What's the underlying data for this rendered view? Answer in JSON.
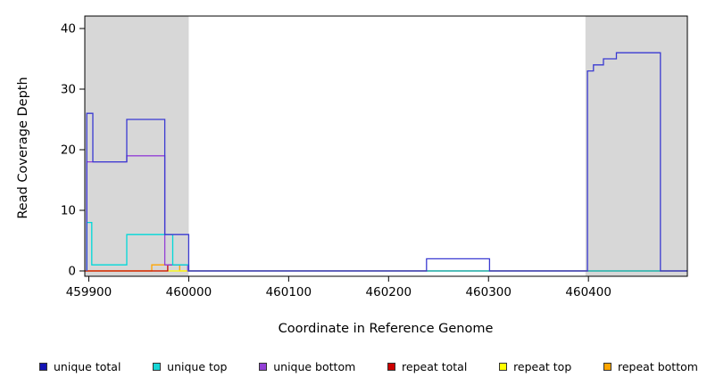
{
  "chart_data": {
    "type": "line",
    "title": "",
    "xlabel": "Coordinate in Reference Genome",
    "ylabel": "Read Coverage Depth",
    "xlim": [
      459896,
      460499
    ],
    "ylim": [
      0,
      40
    ],
    "x_ticks": [
      459900,
      460000,
      460100,
      460200,
      460300,
      460400
    ],
    "y_ticks": [
      0,
      10,
      20,
      30,
      40
    ],
    "grid": false,
    "legend_position": "bottom",
    "shade_color": "#d7d7d7",
    "shaded_regions": [
      {
        "x0": 459896,
        "x1": 460000
      },
      {
        "x0": 460397,
        "x1": 460499
      }
    ],
    "series": [
      {
        "name": "unique total",
        "color": "#3a3ad1",
        "points": [
          [
            459898,
            0
          ],
          [
            459898,
            26
          ],
          [
            459904,
            26
          ],
          [
            459904,
            18
          ],
          [
            459938,
            18
          ],
          [
            459938,
            25
          ],
          [
            459976,
            25
          ],
          [
            459976,
            6
          ],
          [
            460000,
            6
          ],
          [
            460000,
            0
          ],
          [
            460238,
            0
          ],
          [
            460238,
            2
          ],
          [
            460301,
            2
          ],
          [
            460301,
            0
          ],
          [
            460399,
            0
          ],
          [
            460399,
            33
          ],
          [
            460405,
            33
          ],
          [
            460405,
            34
          ],
          [
            460415,
            34
          ],
          [
            460415,
            35
          ],
          [
            460428,
            35
          ],
          [
            460428,
            36
          ],
          [
            460472,
            36
          ],
          [
            460472,
            0
          ],
          [
            460499,
            0
          ]
        ]
      },
      {
        "name": "unique top",
        "color": "#00d8d8",
        "points": [
          [
            459898,
            0
          ],
          [
            459898,
            8
          ],
          [
            459903,
            8
          ],
          [
            459903,
            1
          ],
          [
            459938,
            1
          ],
          [
            459938,
            6
          ],
          [
            459984,
            6
          ],
          [
            459984,
            1
          ],
          [
            460000,
            1
          ],
          [
            460000,
            0
          ],
          [
            460499,
            0
          ]
        ]
      },
      {
        "name": "unique bottom",
        "color": "#9340d6",
        "points": [
          [
            459898,
            0
          ],
          [
            459898,
            18
          ],
          [
            459938,
            18
          ],
          [
            459938,
            19
          ],
          [
            459976,
            19
          ],
          [
            459976,
            1
          ],
          [
            459999,
            1
          ],
          [
            459999,
            0
          ],
          [
            460499,
            0
          ]
        ]
      },
      {
        "name": "repeat total",
        "color": "#cc0000",
        "points": [
          [
            459896,
            0
          ],
          [
            459979,
            0
          ],
          [
            459979,
            1
          ],
          [
            460000,
            1
          ],
          [
            460000,
            0
          ],
          [
            460499,
            0
          ]
        ]
      },
      {
        "name": "repeat top",
        "color": "#ffff00",
        "points": [
          [
            459896,
            0
          ],
          [
            460499,
            0
          ]
        ]
      },
      {
        "name": "repeat bottom",
        "color": "#ffa500",
        "points": [
          [
            459896,
            0
          ],
          [
            459963,
            0
          ],
          [
            459963,
            1
          ],
          [
            459991,
            1
          ],
          [
            459991,
            0
          ],
          [
            460499,
            0
          ]
        ]
      }
    ],
    "legend": [
      {
        "label": "unique total",
        "color": "#1515b5"
      },
      {
        "label": "unique top",
        "color": "#17d6d6"
      },
      {
        "label": "unique bottom",
        "color": "#9340d6"
      },
      {
        "label": "repeat total",
        "color": "#cc0000"
      },
      {
        "label": "repeat top",
        "color": "#ffff00"
      },
      {
        "label": "repeat bottom",
        "color": "#ffa500"
      }
    ]
  }
}
